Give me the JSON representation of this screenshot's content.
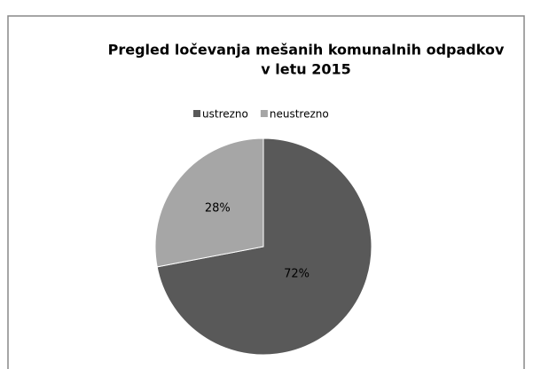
{
  "chart_data": {
    "type": "pie",
    "title": [
      "Pregled ločevanja mešanih komunalnih odpadkov",
      "v letu 2015"
    ],
    "categories": [
      "ustrezno",
      "neustrezno"
    ],
    "values": [
      72,
      28
    ],
    "value_labels": [
      "72%",
      "28%"
    ],
    "colors": [
      "#595959",
      "#a6a6a6"
    ],
    "legend": "top"
  }
}
